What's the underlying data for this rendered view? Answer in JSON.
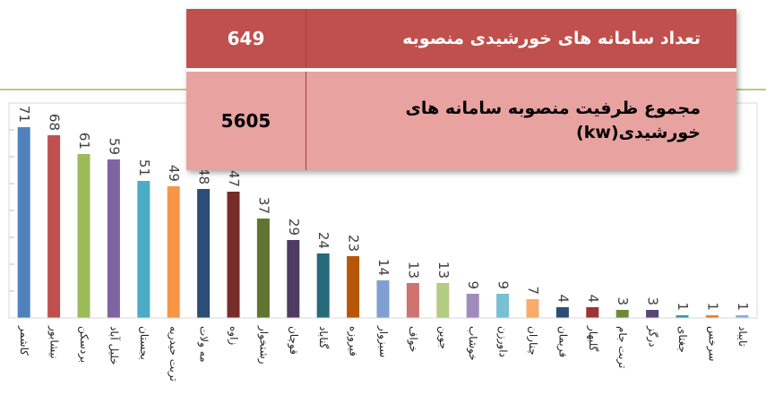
{
  "chart_data": {
    "type": "bar",
    "categories": [
      "کاشمر",
      "نیشابور",
      "بردسکن",
      "خلیل آباد",
      "بجستان",
      "تربت حیدریه",
      "مه ولات",
      "زاوه",
      "رشتخوار",
      "قوچان",
      "گناباد",
      "فیروزه",
      "سبزوار",
      "خواف",
      "جوین",
      "خوشاب",
      "داورزن",
      "چناران",
      "فریمان",
      "گلبهار",
      "تربت جام",
      "درگز",
      "جغتای",
      "سرخس",
      "تایباد"
    ],
    "values": [
      71,
      68,
      61,
      59,
      51,
      49,
      48,
      47,
      37,
      29,
      24,
      23,
      14,
      13,
      13,
      9,
      9,
      7,
      4,
      4,
      3,
      3,
      1,
      1,
      1
    ],
    "colors": [
      "#4f81bd",
      "#c0504d",
      "#9bbb59",
      "#8064a2",
      "#4bacc6",
      "#f79646",
      "#2c4d75",
      "#772c2a",
      "#5f7530",
      "#4d3b62",
      "#276a7c",
      "#b65708",
      "#7f9fd3",
      "#d07270",
      "#b3cc82",
      "#a08cbc",
      "#78c0d4",
      "#f9ab6c",
      "#2c4d75",
      "#9b3532",
      "#6e8a38",
      "#5a4577",
      "#3993ad",
      "#e0822a",
      "#8eaadb"
    ],
    "ylim": [
      0,
      80
    ],
    "yticks": [
      0,
      10,
      20,
      30,
      40,
      50,
      60,
      70,
      80
    ]
  },
  "table": {
    "rows": [
      [
        "649",
        "تعداد سامانه های خورشیدی منصوبه"
      ],
      [
        "5605",
        "مجموع ظرفیت منصوبه سامانه های خورشیدی(kw)"
      ]
    ]
  }
}
